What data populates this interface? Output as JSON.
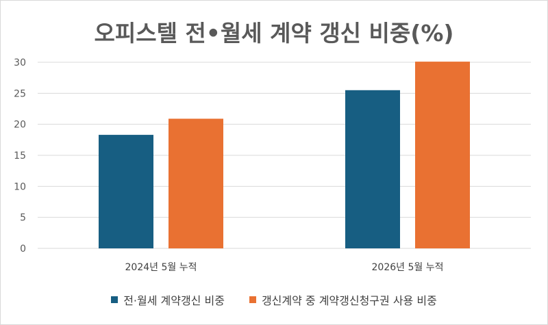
{
  "chart_data": {
    "type": "bar",
    "title": "오피스텔 전•월세 계약 갱신 비중(%)",
    "categories": [
      "2024년 5월 누적",
      "2026년 5월 누적"
    ],
    "series": [
      {
        "name": "전·월세 계약갱신 비중",
        "values": [
          18.3,
          25.5
        ],
        "color": "#175e82"
      },
      {
        "name": "갱신계약 중 계약갱신청구권 사용 비중",
        "values": [
          20.9,
          30.1
        ],
        "color": "#e97132"
      }
    ],
    "ylim": [
      0,
      30
    ],
    "yticks": [
      0,
      5,
      10,
      15,
      20,
      25,
      30
    ],
    "grid": true,
    "legend": "bottom",
    "xlabel": "",
    "ylabel": ""
  }
}
